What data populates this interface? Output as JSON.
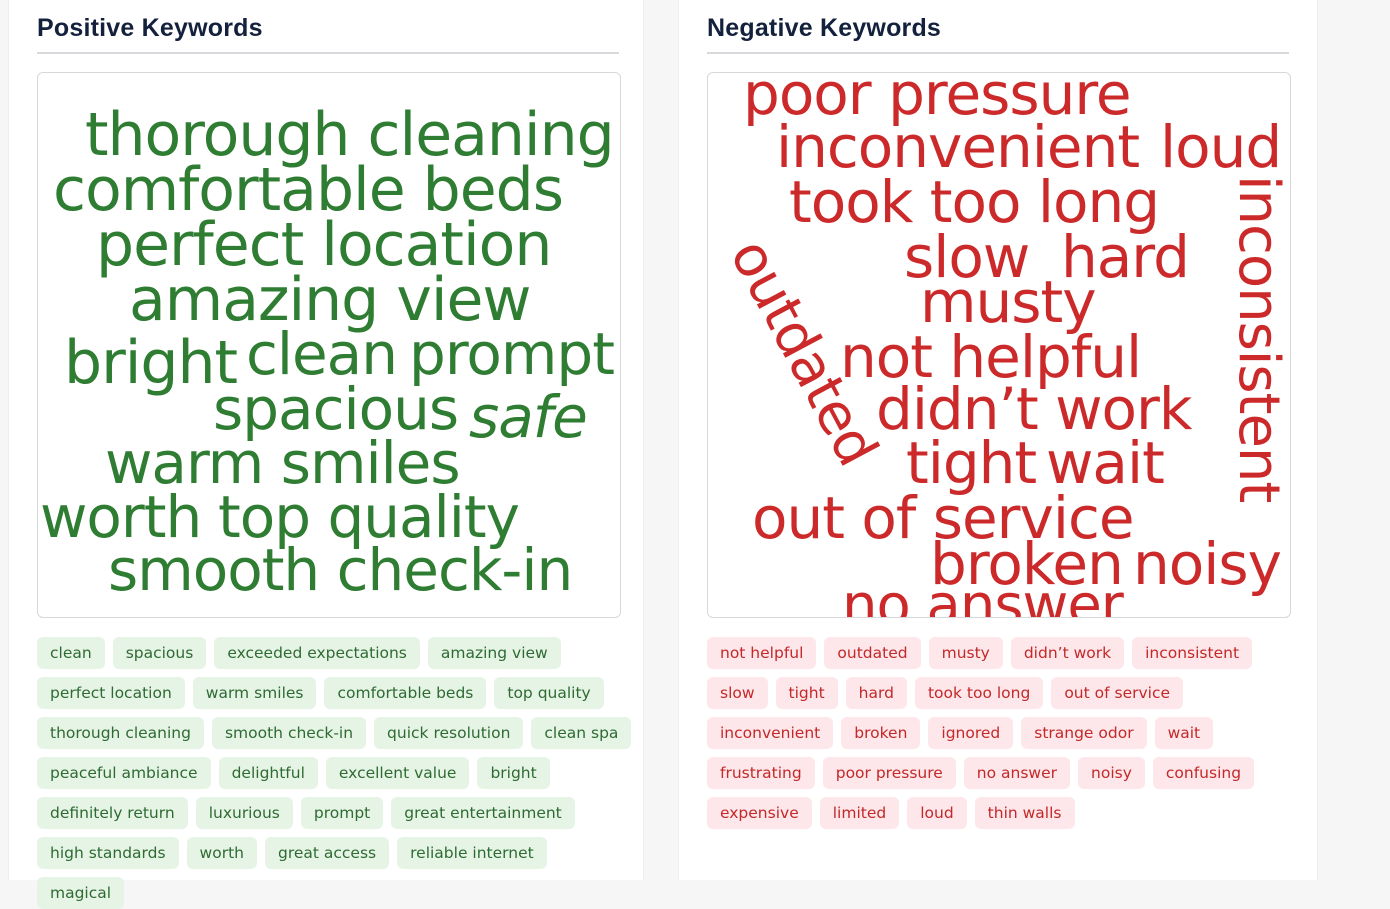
{
  "positive": {
    "title": "Positive Keywords",
    "cloud": [
      "thorough cleaning",
      "comfortable beds",
      "perfect location",
      "amazing view",
      "bright",
      "clean",
      "prompt",
      "spacious",
      "safe",
      "warm smiles",
      "worth",
      "top quality",
      "smooth check-in"
    ],
    "tags": [
      "clean",
      "spacious",
      "exceeded expectations",
      "amazing view",
      "perfect location",
      "warm smiles",
      "comfortable beds",
      "top quality",
      "thorough cleaning",
      "smooth check-in",
      "quick resolution",
      "clean spa",
      "peaceful ambiance",
      "delightful",
      "excellent value",
      "bright",
      "definitely return",
      "luxurious",
      "prompt",
      "great entertainment",
      "high standards",
      "worth",
      "great access",
      "reliable internet",
      "magical"
    ],
    "color": "#2e7d32"
  },
  "negative": {
    "title": "Negative Keywords",
    "cloud": [
      "poor pressure",
      "inconvenient",
      "loud",
      "took too long",
      "slow",
      "hard",
      "musty",
      "not helpful",
      "didn’t work",
      "tight",
      "wait",
      "out of service",
      "broken",
      "noisy",
      "no answer",
      "outdated",
      "inconsistent"
    ],
    "tags": [
      "not helpful",
      "outdated",
      "musty",
      "didn’t work",
      "inconsistent",
      "slow",
      "tight",
      "hard",
      "took too long",
      "out of service",
      "inconvenient",
      "broken",
      "ignored",
      "strange odor",
      "wait",
      "frustrating",
      "poor pressure",
      "no answer",
      "noisy",
      "confusing",
      "expensive",
      "limited",
      "loud",
      "thin walls"
    ],
    "color": "#cc2a2a"
  }
}
